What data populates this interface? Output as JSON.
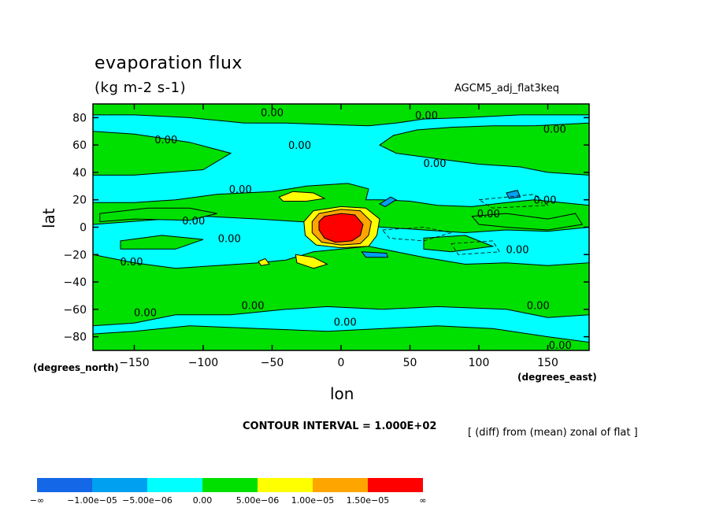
{
  "title": "evaporation flux",
  "units": "(kg m-2 s-1)",
  "dataset": "AGCM5_adj_flat3keq",
  "contour_interval": "CONTOUR INTERVAL = 1.000E+02",
  "note": "[ (diff) from (mean) zonal of flat ]",
  "chart_data": {
    "type": "heatmap",
    "xlabel": "lon",
    "ylabel": "lat",
    "x_units": "(degrees_east)",
    "y_units": "(degrees_north)",
    "xlim": [
      -180,
      180
    ],
    "ylim": [
      -90,
      90
    ],
    "x_ticks": [
      -150,
      -100,
      -50,
      0,
      50,
      100,
      150
    ],
    "x_tick_labels": [
      "−150",
      "−100",
      "−50",
      "0",
      "50",
      "100",
      "150"
    ],
    "y_ticks": [
      80,
      60,
      40,
      20,
      0,
      -20,
      -40,
      -60,
      -80
    ],
    "y_tick_labels": [
      "80",
      "60",
      "40",
      "20",
      "0",
      "−20",
      "−40",
      "−60",
      "−80"
    ],
    "contour_labels": [
      {
        "text": "0.00",
        "lon": -50,
        "lat": 84
      },
      {
        "text": "0.00",
        "lon": 62,
        "lat": 82
      },
      {
        "text": "0.00",
        "lon": 155,
        "lat": 72
      },
      {
        "text": "0.00",
        "lon": -127,
        "lat": 64
      },
      {
        "text": "0.00",
        "lon": -30,
        "lat": 60
      },
      {
        "text": "0.00",
        "lon": 68,
        "lat": 47
      },
      {
        "text": "0.00",
        "lon": -73,
        "lat": 28
      },
      {
        "text": "0.00",
        "lon": 107,
        "lat": 10
      },
      {
        "text": "0.00",
        "lon": 148,
        "lat": 20
      },
      {
        "text": "0.00",
        "lon": -107,
        "lat": 5
      },
      {
        "text": "0.00",
        "lon": -81,
        "lat": -8
      },
      {
        "text": "0.00",
        "lon": -152,
        "lat": -25
      },
      {
        "text": "0.00",
        "lon": 128,
        "lat": -16
      },
      {
        "text": "0.00",
        "lon": -64,
        "lat": -57
      },
      {
        "text": "0.00",
        "lon": -142,
        "lat": -62
      },
      {
        "text": "0.00",
        "lon": 143,
        "lat": -57
      },
      {
        "text": "0.00",
        "lon": 3,
        "lat": -69
      },
      {
        "text": "0.00",
        "lon": 159,
        "lat": -86
      }
    ],
    "features": {
      "background_level": "0.00 to 5.00e-06 (green)",
      "negative_bands_level": "-5.00e-06 to 0.00 (cyan)",
      "max_center": {
        "lon": 0,
        "lat": 0,
        "level": "1.50e-05 to ∞"
      }
    }
  },
  "colorbar": {
    "colors": [
      "#1467e6",
      "#00a0f0",
      "#00ffff",
      "#00e000",
      "#ffff00",
      "#ffa500",
      "#ff0000"
    ],
    "labels": [
      "−∞",
      "−1.00e−05",
      "−5.00e−06",
      "0.00",
      "5.00e−06",
      "1.00e−05",
      "1.50e−05",
      "∞"
    ]
  }
}
